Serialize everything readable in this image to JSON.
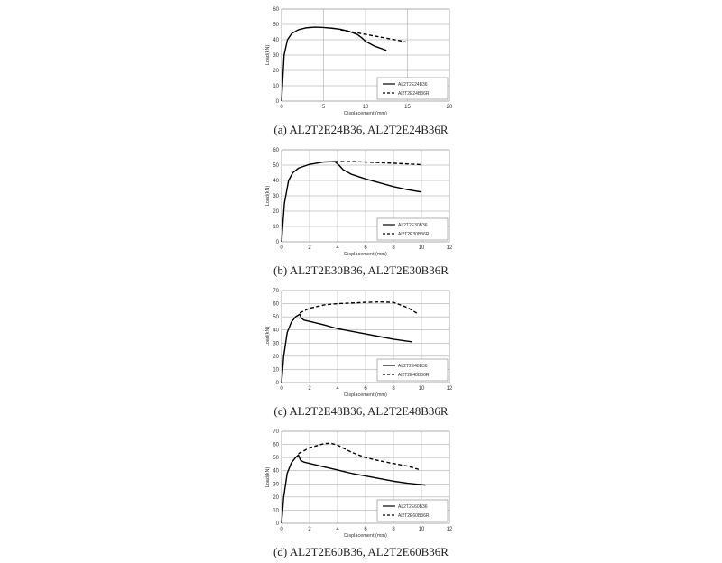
{
  "chart_data": [
    {
      "type": "line",
      "caption": "(a)  AL2T2E24B36,  AL2T2E24B36R",
      "xlabel": "Displacement (mm)",
      "ylabel": "Load(kN)",
      "xlim": [
        0,
        20
      ],
      "ylim": [
        0,
        60
      ],
      "xticks": [
        0,
        5,
        10,
        15,
        20
      ],
      "yticks": [
        0,
        10,
        20,
        30,
        40,
        50,
        60
      ],
      "grid": true,
      "legend": "bottom-right",
      "series": [
        {
          "name": "AL2T2E24B36",
          "style": "solid",
          "x": [
            0,
            0.3,
            0.7,
            1.2,
            2,
            3,
            4,
            5,
            6,
            7,
            8,
            9,
            9.5,
            10,
            11,
            12.5
          ],
          "y": [
            0,
            30,
            40,
            44,
            46.5,
            47.8,
            48.2,
            48,
            47.5,
            46.8,
            45.5,
            43.5,
            41.5,
            39,
            36,
            33
          ]
        },
        {
          "name": "Al2T2E24B36R",
          "style": "dashed",
          "x": [
            7,
            8,
            9,
            10,
            11,
            12,
            13,
            14,
            14.8
          ],
          "y": [
            46.5,
            45.5,
            44.5,
            43.5,
            42.5,
            41.5,
            40.5,
            39.5,
            38.5
          ]
        }
      ]
    },
    {
      "type": "line",
      "caption": "(b)  AL2T2E30B36,  AL2T2E30B36R",
      "xlabel": "Displacement (mm)",
      "ylabel": "Load(kN)",
      "xlim": [
        0,
        12
      ],
      "ylim": [
        0,
        60
      ],
      "xticks": [
        0,
        2,
        4,
        6,
        8,
        10,
        12
      ],
      "yticks": [
        0,
        10,
        20,
        30,
        40,
        50,
        60
      ],
      "grid": true,
      "legend": "bottom-right",
      "series": [
        {
          "name": "AL2T2E30B36",
          "style": "solid",
          "x": [
            0,
            0.2,
            0.5,
            0.8,
            1.2,
            2,
            3,
            3.8,
            4.1,
            4.4,
            5,
            6,
            7,
            8,
            9,
            10
          ],
          "y": [
            0,
            25,
            40,
            45,
            48,
            50.5,
            52,
            52.3,
            50,
            47,
            44,
            41,
            38.5,
            36,
            34,
            32.5
          ]
        },
        {
          "name": "Al2T2E30B36R",
          "style": "dashed",
          "x": [
            3.8,
            5,
            6,
            7,
            8,
            9,
            10
          ],
          "y": [
            52.3,
            52.3,
            52,
            51.6,
            51.2,
            50.8,
            50.3
          ]
        }
      ]
    },
    {
      "type": "line",
      "caption": "(c)  AL2T2E48B36,  AL2T2E48B36R",
      "xlabel": "Displacement (mm)",
      "ylabel": "Load(kN)",
      "xlim": [
        0,
        12
      ],
      "ylim": [
        0,
        70
      ],
      "xticks": [
        0,
        2,
        4,
        6,
        8,
        10,
        12
      ],
      "yticks": [
        0,
        10,
        20,
        30,
        40,
        50,
        60,
        70
      ],
      "grid": true,
      "legend": "bottom-right",
      "series": [
        {
          "name": "AL2T2E48B36",
          "style": "solid",
          "x": [
            0,
            0.15,
            0.4,
            0.7,
            1,
            1.3,
            1.4,
            1.6,
            2,
            3,
            4,
            5,
            6,
            7,
            8,
            9.3
          ],
          "y": [
            0,
            20,
            38,
            46,
            50,
            52,
            49,
            47.5,
            46.5,
            44,
            41,
            39,
            37,
            35,
            33,
            31
          ]
        },
        {
          "name": "Al2T2E48B36R",
          "style": "dashed",
          "x": [
            1.3,
            2,
            3,
            4,
            5,
            6,
            7,
            8,
            9,
            9.8
          ],
          "y": [
            53,
            56.5,
            59,
            60,
            60.5,
            61,
            61.3,
            61,
            57,
            52
          ]
        }
      ]
    },
    {
      "type": "line",
      "caption": "(d)  AL2T2E60B36,  AL2T2E60B36R",
      "xlabel": "Displacement (mm)",
      "ylabel": "Load(kN)",
      "xlim": [
        0,
        12
      ],
      "ylim": [
        0,
        70
      ],
      "xticks": [
        0,
        2,
        4,
        6,
        8,
        10,
        12
      ],
      "yticks": [
        0,
        10,
        20,
        30,
        40,
        50,
        60,
        70
      ],
      "grid": true,
      "legend": "bottom-right",
      "series": [
        {
          "name": "AL2T2E60B36",
          "style": "solid",
          "x": [
            0,
            0.15,
            0.4,
            0.7,
            1,
            1.2,
            1.35,
            1.6,
            2,
            3,
            4,
            5,
            6,
            7,
            8,
            9,
            10.3
          ],
          "y": [
            0,
            20,
            38,
            46,
            50,
            52,
            48,
            46.5,
            45.5,
            43,
            40.5,
            38,
            36,
            34,
            32,
            30.5,
            29
          ]
        },
        {
          "name": "Al2T2E60B36R",
          "style": "dashed",
          "x": [
            1.2,
            2,
            3,
            3.5,
            4,
            5,
            6,
            7,
            8,
            9,
            9.8
          ],
          "y": [
            53,
            57.5,
            60.5,
            61,
            59.5,
            54,
            50,
            47.5,
            45.5,
            43.5,
            41
          ]
        }
      ]
    }
  ]
}
